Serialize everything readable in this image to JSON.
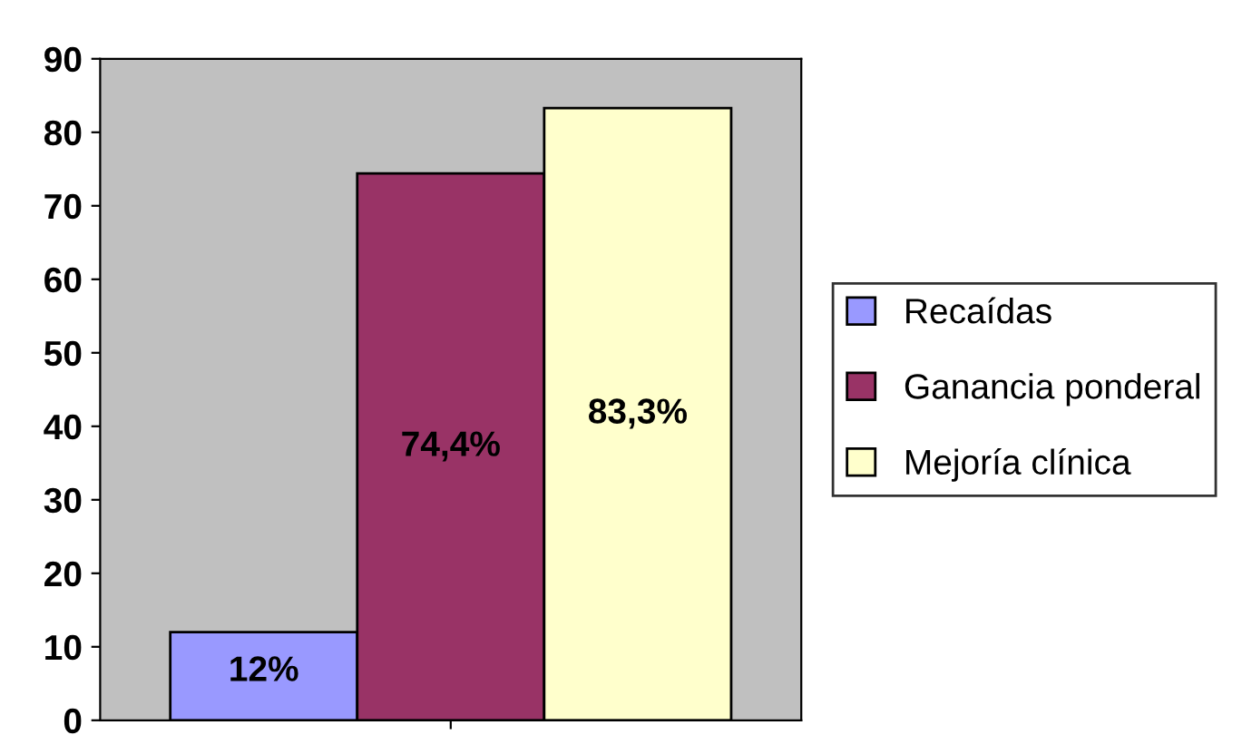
{
  "chart_data": {
    "type": "bar",
    "categories": [
      null
    ],
    "series": [
      {
        "name": "Recaídas",
        "color": "#9999ff",
        "values": [
          12
        ],
        "value_labels": [
          "12%"
        ]
      },
      {
        "name": "Ganancia ponderal",
        "color": "#993366",
        "values": [
          74.4
        ],
        "value_labels": [
          "74,4%"
        ]
      },
      {
        "name": "Mejoría clínica",
        "color": "#ffffcc",
        "values": [
          83.3
        ],
        "value_labels": [
          "83,3%"
        ]
      }
    ],
    "ylim": [
      0,
      90
    ],
    "yticks": [
      0,
      10,
      20,
      30,
      40,
      50,
      60,
      70,
      80,
      90
    ],
    "grid": false,
    "legend": "right"
  }
}
